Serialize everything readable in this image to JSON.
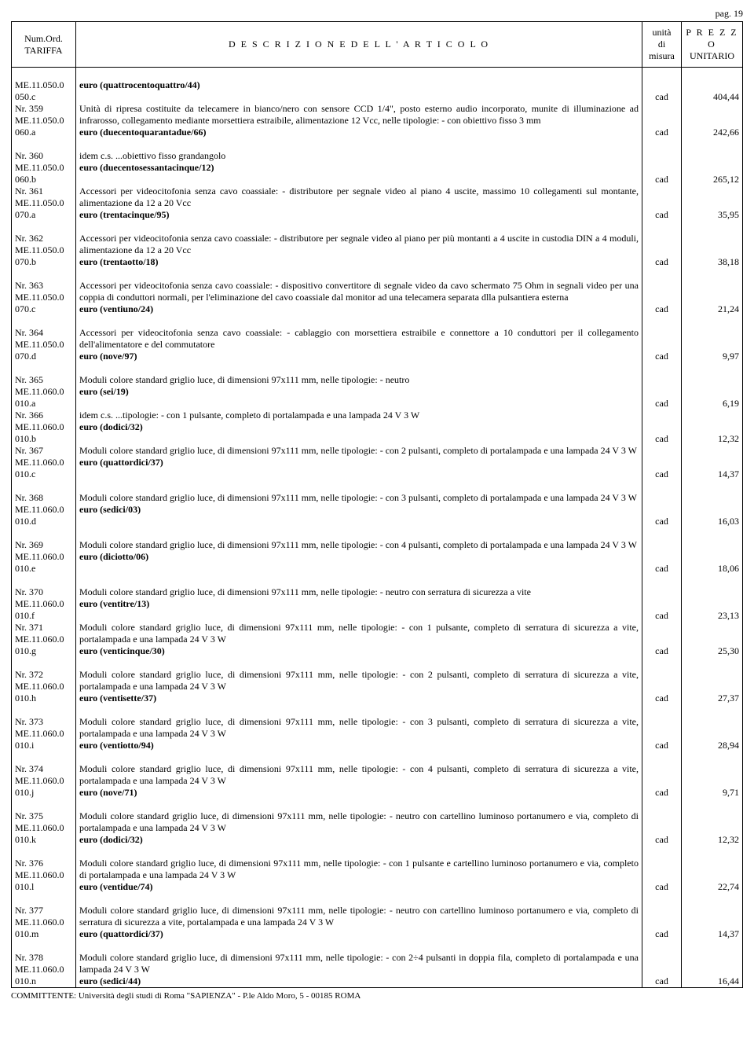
{
  "page_label": "pag. 19",
  "header": {
    "col1_line1": "Num.Ord.",
    "col1_line2": "TARIFFA",
    "col2": "D E S C R I Z I O N E   D E L L ' A R T I C O L O",
    "col3_line1": "unità",
    "col3_line2": "di",
    "col3_line3": "misura",
    "col4_line1": "P R E Z Z O",
    "col4_line2": "UNITARIO"
  },
  "rows": [
    {
      "ord": [
        "ME.11.050.0",
        "050.c"
      ],
      "desc": "",
      "price_line": "euro (quattrocentoquattro/44)",
      "unit": "cad",
      "price": "404,44"
    },
    {
      "ord": [
        "Nr. 359",
        "ME.11.050.0",
        "060.a"
      ],
      "desc": "Unità di ripresa costituite da telecamere in bianco/nero con sensore CCD 1/4\", posto esterno audio incorporato, munite di illuminazione ad infrarosso, collegamento mediante morsettiera estraibile, alimentazione 12 Vcc, nelle tipologie: - con obiettivo fisso 3 mm",
      "price_line": "euro (duecentoquarantadue/66)",
      "unit": "cad",
      "price": "242,66"
    },
    {
      "ord": [
        "Nr. 360",
        "ME.11.050.0",
        "060.b"
      ],
      "desc": "idem c.s. ...obiettivo fisso grandangolo",
      "price_line": "euro (duecentosessantacinque/12)",
      "unit": "cad",
      "price": "265,12"
    },
    {
      "ord": [
        "Nr. 361",
        "ME.11.050.0",
        "070.a"
      ],
      "desc": "Accessori per videocitofonia senza cavo coassiale: - distributore per segnale video al piano 4 uscite, massimo 10 collegamenti sul montante, alimentazione da 12 a 20 Vcc",
      "price_line": "euro (trentacinque/95)",
      "unit": "cad",
      "price": "35,95"
    },
    {
      "ord": [
        "Nr. 362",
        "ME.11.050.0",
        "070.b"
      ],
      "desc": "Accessori per videocitofonia senza cavo coassiale: - distributore per segnale video al piano per più montanti a 4 uscite in custodia DIN a 4 moduli, alimentazione da 12 a 20 Vcc",
      "price_line": "euro (trentaotto/18)",
      "unit": "cad",
      "price": "38,18"
    },
    {
      "ord": [
        "Nr. 363",
        "ME.11.050.0",
        "070.c"
      ],
      "desc": "Accessori per videocitofonia senza cavo coassiale: - dispositivo convertitore di segnale video da cavo schermato 75 Ohm in segnali video per una coppia di conduttori normali, per l'eliminazione del cavo coassiale dal monitor ad una telecamera separata dlla pulsantiera esterna",
      "price_line": "euro (ventiuno/24)",
      "unit": "cad",
      "price": "21,24"
    },
    {
      "ord": [
        "Nr. 364",
        "ME.11.050.0",
        "070.d"
      ],
      "desc": "Accessori per videocitofonia senza cavo coassiale: - cablaggio con morsettiera estraibile e connettore a 10 conduttori per il collegamento dell'alimentatore e del commutatore",
      "price_line": "euro (nove/97)",
      "unit": "cad",
      "price": "9,97"
    },
    {
      "ord": [
        "Nr. 365",
        "ME.11.060.0",
        "010.a"
      ],
      "desc": "Moduli colore standard griglio luce, di dimensioni 97x111 mm, nelle tipologie: - neutro",
      "price_line": "euro (sei/19)",
      "unit": "cad",
      "price": "6,19"
    },
    {
      "ord": [
        "Nr. 366",
        "ME.11.060.0",
        "010.b"
      ],
      "desc": "idem c.s. ...tipologie: - con 1 pulsante, completo di portalampada e una lampada 24 V 3 W",
      "price_line": "euro (dodici/32)",
      "unit": "cad",
      "price": "12,32"
    },
    {
      "ord": [
        "Nr. 367",
        "ME.11.060.0",
        "010.c"
      ],
      "desc": "Moduli colore standard griglio luce, di dimensioni 97x111 mm, nelle tipologie: - con 2 pulsanti, completo di portalampada e una lampada 24 V 3 W",
      "price_line": "euro (quattordici/37)",
      "unit": "cad",
      "price": "14,37"
    },
    {
      "ord": [
        "Nr. 368",
        "ME.11.060.0",
        "010.d"
      ],
      "desc": "Moduli colore standard griglio luce, di dimensioni 97x111 mm, nelle tipologie: - con 3 pulsanti, completo di portalampada e una lampada 24 V 3 W",
      "price_line": "euro (sedici/03)",
      "unit": "cad",
      "price": "16,03"
    },
    {
      "ord": [
        "Nr. 369",
        "ME.11.060.0",
        "010.e"
      ],
      "desc": "Moduli colore standard griglio luce, di dimensioni 97x111 mm, nelle tipologie: - con 4 pulsanti, completo di portalampada e una lampada 24 V 3 W",
      "price_line": "euro (diciotto/06)",
      "unit": "cad",
      "price": "18,06"
    },
    {
      "ord": [
        "Nr. 370",
        "ME.11.060.0",
        "010.f"
      ],
      "desc": "Moduli colore standard griglio luce, di dimensioni 97x111 mm, nelle tipologie: - neutro con serratura di sicurezza a vite",
      "price_line": "euro (ventitre/13)",
      "unit": "cad",
      "price": "23,13"
    },
    {
      "ord": [
        "Nr. 371",
        "ME.11.060.0",
        "010.g"
      ],
      "desc": "Moduli colore standard griglio luce, di dimensioni 97x111 mm, nelle tipologie: - con 1 pulsante, completo di serratura di sicurezza a vite, portalampada e una lampada 24 V 3 W",
      "price_line": "euro (venticinque/30)",
      "unit": "cad",
      "price": "25,30"
    },
    {
      "ord": [
        "Nr. 372",
        "ME.11.060.0",
        "010.h"
      ],
      "desc": "Moduli colore standard griglio luce, di dimensioni 97x111 mm, nelle tipologie: - con 2 pulsanti, completo di serratura di sicurezza a vite, portalampada e una lampada 24 V 3 W",
      "price_line": "euro (ventisette/37)",
      "unit": "cad",
      "price": "27,37"
    },
    {
      "ord": [
        "Nr. 373",
        "ME.11.060.0",
        "010.i"
      ],
      "desc": "Moduli colore standard griglio luce, di dimensioni 97x111 mm, nelle tipologie: - con 3 pulsanti, completo di serratura di sicurezza a vite, portalampada e una lampada 24 V 3 W",
      "price_line": "euro (ventiotto/94)",
      "unit": "cad",
      "price": "28,94"
    },
    {
      "ord": [
        "Nr. 374",
        "ME.11.060.0",
        "010.j"
      ],
      "desc": "Moduli colore standard griglio luce, di dimensioni 97x111 mm, nelle tipologie: - con 4 pulsanti, completo di serratura di sicurezza a vite, portalampada e una lampada 24 V 3 W",
      "price_line": "euro (nove/71)",
      "unit": "cad",
      "price": "9,71"
    },
    {
      "ord": [
        "Nr. 375",
        "ME.11.060.0",
        "010.k"
      ],
      "desc": "Moduli colore standard griglio luce, di dimensioni 97x111 mm, nelle tipologie: - neutro con cartellino luminoso portanumero e via, completo di portalampada e una lampada 24 V 3 W",
      "price_line": "euro (dodici/32)",
      "unit": "cad",
      "price": "12,32"
    },
    {
      "ord": [
        "Nr. 376",
        "ME.11.060.0",
        "010.l"
      ],
      "desc": "Moduli colore standard griglio luce, di dimensioni 97x111 mm, nelle tipologie: - con 1 pulsante e cartellino luminoso portanumero e via, completo di portalampada e una lampada 24 V 3 W",
      "price_line": "euro (ventidue/74)",
      "unit": "cad",
      "price": "22,74"
    },
    {
      "ord": [
        "Nr. 377",
        "ME.11.060.0",
        "010.m"
      ],
      "desc": "Moduli colore standard griglio luce, di dimensioni 97x111 mm, nelle tipologie: - neutro con cartellino luminoso portanumero e via, completo di serratura di sicurezza a vite, portalampada e una lampada 24 V 3 W",
      "price_line": "euro (quattordici/37)",
      "unit": "cad",
      "price": "14,37"
    },
    {
      "ord": [
        "Nr. 378",
        "ME.11.060.0",
        "010.n"
      ],
      "desc": "Moduli colore standard griglio luce, di dimensioni 97x111 mm, nelle tipologie: - con 2÷4 pulsanti in doppia fila, completo di portalampada e una lampada 24 V 3 W",
      "price_line": "euro (sedici/44)",
      "unit": "cad",
      "price": "16,44"
    }
  ],
  "footer": "COMMITTENTE: Università degli studi di Roma \"SAPIENZA\" - P.le Aldo Moro, 5 - 00185 ROMA",
  "groups": [
    [
      0,
      1
    ],
    [
      2,
      3
    ],
    [
      4
    ],
    [
      5
    ],
    [
      6
    ],
    [
      7,
      8,
      9
    ],
    [
      10
    ],
    [
      11
    ],
    [
      12,
      13
    ],
    [
      14
    ],
    [
      15
    ],
    [
      16
    ],
    [
      17
    ],
    [
      18
    ],
    [
      19
    ],
    [
      20
    ]
  ]
}
